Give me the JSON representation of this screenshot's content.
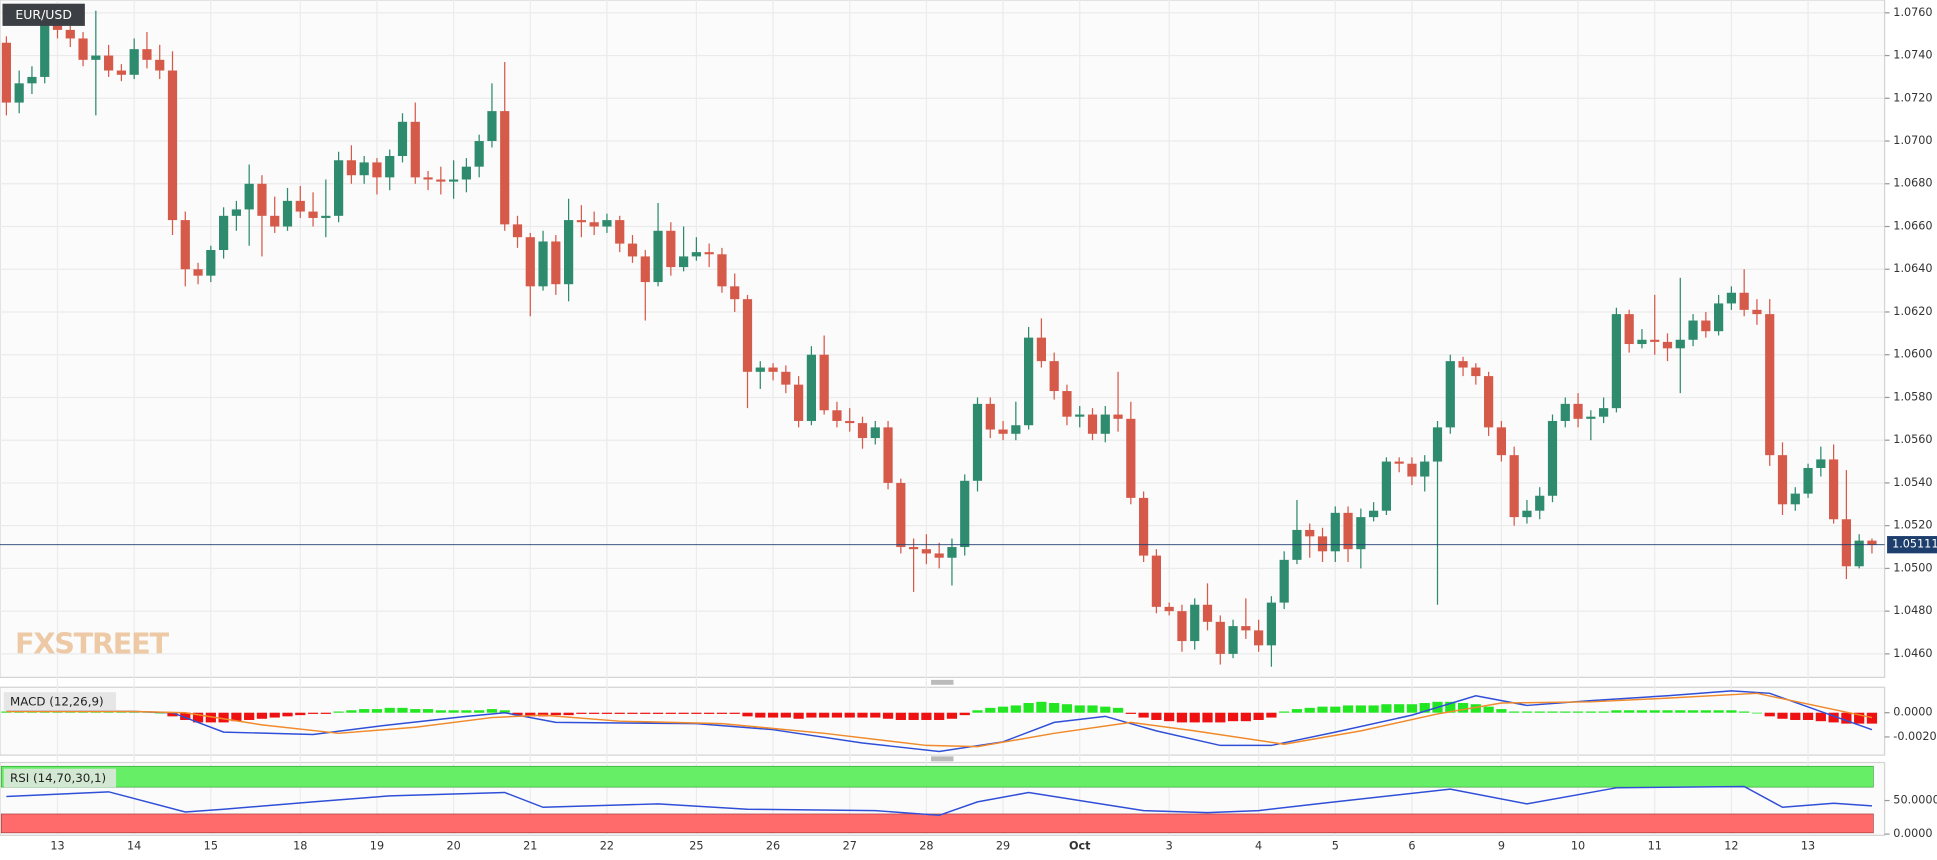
{
  "chart_data": [
    {
      "type": "candlestick",
      "title": "EUR/USD",
      "watermark": "FXSTREET",
      "categories": [
        null,
        null,
        null,
        null,
        "13",
        null,
        null,
        null,
        null,
        null,
        "14",
        null,
        null,
        null,
        null,
        null,
        "15",
        null,
        null,
        null,
        null,
        null,
        null,
        "18",
        null,
        null,
        null,
        null,
        null,
        "19",
        null,
        null,
        null,
        null,
        null,
        "20",
        null,
        null,
        null,
        null,
        null,
        "21",
        null,
        null,
        null,
        null,
        null,
        "22",
        null,
        null,
        null,
        null,
        null,
        null,
        "25",
        null,
        null,
        null,
        null,
        null,
        "26",
        null,
        null,
        null,
        null,
        null,
        "27",
        null,
        null,
        null,
        null,
        null,
        "28",
        null,
        null,
        null,
        null,
        null,
        "29",
        null,
        null,
        null,
        null,
        null,
        "Oct",
        null,
        null,
        null,
        null,
        null,
        null,
        "3",
        null,
        null,
        null,
        null,
        null,
        null,
        "4",
        null,
        null,
        null,
        null,
        null,
        "5",
        null,
        null,
        null,
        null,
        null,
        "6",
        null,
        null,
        null,
        null,
        null,
        null,
        "9",
        null,
        null,
        null,
        null,
        null,
        "10",
        null,
        null,
        null,
        null,
        null,
        "11",
        null,
        null,
        null,
        null,
        null,
        "12",
        null,
        null,
        null,
        null,
        null,
        "13",
        null,
        null,
        null,
        null,
        null
      ],
      "open": [
        1.0746,
        1.0718,
        1.0727,
        1.073,
        1.0758,
        1.0752,
        1.0748,
        1.0738,
        1.074,
        1.0733,
        1.0731,
        1.0743,
        1.0738,
        1.0733,
        1.0663,
        1.064,
        1.0637,
        1.0649,
        1.0665,
        1.0668,
        1.068,
        1.0665,
        1.066,
        1.0672,
        1.0667,
        1.0664,
        1.0665,
        1.0691,
        1.0684,
        1.069,
        1.0683,
        1.0693,
        1.0709,
        1.0683,
        1.0682,
        1.0681,
        1.0682,
        1.0688,
        1.07,
        1.0714,
        1.0661,
        1.0655,
        1.0632,
        1.0653,
        1.0633,
        1.0663,
        1.0662,
        1.066,
        1.0663,
        1.0652,
        1.0646,
        1.0634,
        1.0658,
        1.0641,
        1.0646,
        1.0648,
        1.0647,
        1.0632,
        1.0626,
        1.0592,
        1.0594,
        1.0592,
        1.0586,
        1.0569,
        1.06,
        1.0574,
        1.0569,
        1.0568,
        1.0561,
        1.0566,
        1.054,
        1.051,
        1.0509,
        1.0507,
        1.0505,
        1.051,
        1.0541,
        1.0577,
        1.0565,
        1.0563,
        1.0567,
        1.0608,
        1.0597,
        1.0583,
        1.0571,
        1.0572,
        1.0563,
        1.0572,
        1.057,
        1.0533,
        1.0506,
        1.0482,
        1.048,
        1.0466,
        1.0483,
        1.0475,
        1.046,
        1.0473,
        1.0471,
        1.0464,
        1.0484,
        1.0504,
        1.0518,
        1.0515,
        1.0508,
        1.0526,
        1.0509,
        1.0524,
        1.0527,
        1.055,
        1.0549,
        1.0543,
        1.055,
        1.0566,
        1.0597,
        1.0594,
        1.059,
        1.0566,
        1.0553,
        1.0524,
        1.0527,
        1.0534,
        1.0569,
        1.0577,
        1.057,
        1.0571,
        1.0575,
        1.0619,
        1.0605,
        1.0607,
        1.0606,
        1.0603,
        1.0607,
        1.0616,
        1.0611,
        1.0624,
        1.0629,
        1.0621,
        1.0619,
        1.0553,
        1.053,
        1.0535,
        1.0547,
        1.0551,
        1.0523,
        1.0501,
        1.0513
      ],
      "high": [
        1.0749,
        1.0733,
        1.0735,
        1.0761,
        1.0762,
        1.0757,
        1.0751,
        1.0761,
        1.0745,
        1.0736,
        1.0748,
        1.0751,
        1.0745,
        1.0742,
        1.0667,
        1.0643,
        1.0651,
        1.0669,
        1.0672,
        1.0689,
        1.0684,
        1.0674,
        1.0678,
        1.0679,
        1.0676,
        1.0682,
        1.0695,
        1.0698,
        1.0693,
        1.0692,
        1.0696,
        1.0713,
        1.0718,
        1.0686,
        1.0688,
        1.0691,
        1.0692,
        1.0703,
        1.0727,
        1.0737,
        1.0665,
        1.0657,
        1.0658,
        1.0656,
        1.0673,
        1.067,
        1.0667,
        1.0666,
        1.0665,
        1.0656,
        1.0649,
        1.0671,
        1.0662,
        1.066,
        1.0655,
        1.0652,
        1.065,
        1.0638,
        1.0628,
        1.0597,
        1.0596,
        1.0595,
        1.059,
        1.0604,
        1.0609,
        1.0578,
        1.0575,
        1.0571,
        1.0569,
        1.0569,
        1.0542,
        1.0514,
        1.0516,
        1.0512,
        1.0514,
        1.0544,
        1.058,
        1.058,
        1.0569,
        1.0578,
        1.0613,
        1.0617,
        1.0601,
        1.0586,
        1.0576,
        1.0575,
        1.0576,
        1.0592,
        1.0578,
        1.0536,
        1.0509,
        1.0484,
        1.0483,
        1.0486,
        1.0493,
        1.0478,
        1.0476,
        1.0486,
        1.0476,
        1.0487,
        1.0508,
        1.0532,
        1.0521,
        1.0519,
        1.0529,
        1.0529,
        1.0528,
        1.0531,
        1.0552,
        1.0552,
        1.0552,
        1.0553,
        1.0569,
        1.06,
        1.0599,
        1.0596,
        1.0592,
        1.0569,
        1.0557,
        1.0532,
        1.0538,
        1.0572,
        1.058,
        1.0582,
        1.0574,
        1.058,
        1.0622,
        1.0621,
        1.0612,
        1.0628,
        1.061,
        1.0636,
        1.0619,
        1.062,
        1.0628,
        1.0632,
        1.064,
        1.0626,
        1.0626,
        1.0559,
        1.0538,
        1.0549,
        1.0557,
        1.0558,
        1.0546,
        1.0516,
        1.0514
      ],
      "low": [
        1.0712,
        1.0713,
        1.0722,
        1.0727,
        1.0748,
        1.0744,
        1.0735,
        1.0712,
        1.073,
        1.0728,
        1.0729,
        1.0734,
        1.0729,
        1.0656,
        1.0632,
        1.0633,
        1.0634,
        1.0645,
        1.0658,
        1.0651,
        1.0646,
        1.0657,
        1.0658,
        1.0664,
        1.066,
        1.0655,
        1.0662,
        1.068,
        1.068,
        1.0675,
        1.0677,
        1.069,
        1.068,
        1.0677,
        1.0675,
        1.0673,
        1.0676,
        1.0683,
        1.0697,
        1.0658,
        1.065,
        1.0618,
        1.063,
        1.0628,
        1.0625,
        1.0655,
        1.0656,
        1.0657,
        1.0648,
        1.0643,
        1.0616,
        1.0632,
        1.0637,
        1.0639,
        1.0644,
        1.0641,
        1.0629,
        1.062,
        1.0575,
        1.0584,
        1.0588,
        1.0582,
        1.0566,
        1.0567,
        1.0572,
        1.0566,
        1.0564,
        1.0556,
        1.0558,
        1.0537,
        1.0507,
        1.0489,
        1.0502,
        1.05,
        1.0492,
        1.0506,
        1.0536,
        1.0561,
        1.056,
        1.056,
        1.0565,
        1.0594,
        1.0579,
        1.0567,
        1.0566,
        1.056,
        1.0559,
        1.0564,
        1.053,
        1.0503,
        1.0479,
        1.0478,
        1.0461,
        1.0462,
        1.0471,
        1.0455,
        1.0458,
        1.0467,
        1.0461,
        1.0454,
        1.0481,
        1.0502,
        1.0505,
        1.0503,
        1.0503,
        1.0503,
        1.05,
        1.0522,
        1.0525,
        1.0545,
        1.0539,
        1.0536,
        1.0483,
        1.0563,
        1.059,
        1.0586,
        1.0562,
        1.055,
        1.052,
        1.0521,
        1.0523,
        1.0531,
        1.0566,
        1.0566,
        1.056,
        1.0568,
        1.0573,
        1.0601,
        1.0603,
        1.06,
        1.0597,
        1.0582,
        1.0604,
        1.0608,
        1.0609,
        1.0621,
        1.0618,
        1.0614,
        1.0548,
        1.0525,
        1.0527,
        1.0533,
        1.0543,
        1.0521,
        1.0495,
        1.05,
        1.0507
      ],
      "close": [
        1.0718,
        1.0727,
        1.073,
        1.0758,
        1.0752,
        1.0748,
        1.0738,
        1.074,
        1.0733,
        1.0731,
        1.0743,
        1.0738,
        1.0733,
        1.0663,
        1.064,
        1.0637,
        1.0649,
        1.0665,
        1.0668,
        1.068,
        1.0665,
        1.066,
        1.0672,
        1.0667,
        1.0664,
        1.0665,
        1.0691,
        1.0684,
        1.069,
        1.0683,
        1.0693,
        1.0709,
        1.0683,
        1.0682,
        1.0681,
        1.0682,
        1.0688,
        1.07,
        1.0714,
        1.0661,
        1.0655,
        1.0632,
        1.0653,
        1.0633,
        1.0663,
        1.0662,
        1.066,
        1.0663,
        1.0652,
        1.0646,
        1.0634,
        1.0658,
        1.0641,
        1.0646,
        1.0648,
        1.0647,
        1.0632,
        1.0626,
        1.0592,
        1.0594,
        1.0592,
        1.0586,
        1.0569,
        1.06,
        1.0574,
        1.0569,
        1.0568,
        1.0561,
        1.0566,
        1.054,
        1.051,
        1.0509,
        1.0507,
        1.0505,
        1.051,
        1.0541,
        1.0577,
        1.0565,
        1.0563,
        1.0567,
        1.0608,
        1.0597,
        1.0583,
        1.0571,
        1.0572,
        1.0563,
        1.0572,
        1.057,
        1.0533,
        1.0506,
        1.0482,
        1.048,
        1.0466,
        1.0483,
        1.0475,
        1.046,
        1.0473,
        1.0471,
        1.0464,
        1.0484,
        1.0504,
        1.0518,
        1.0515,
        1.0508,
        1.0526,
        1.0509,
        1.0524,
        1.0527,
        1.055,
        1.0549,
        1.0543,
        1.055,
        1.0566,
        1.0597,
        1.0594,
        1.059,
        1.0566,
        1.0553,
        1.0524,
        1.0527,
        1.0534,
        1.0569,
        1.0577,
        1.057,
        1.0571,
        1.0575,
        1.0619,
        1.0605,
        1.0607,
        1.0606,
        1.0603,
        1.0607,
        1.0616,
        1.0611,
        1.0624,
        1.0629,
        1.0621,
        1.0619,
        1.0553,
        1.053,
        1.0535,
        1.0547,
        1.0551,
        1.0523,
        1.0501,
        1.0513,
        1.0511
      ],
      "up_color": "#2e8b6e",
      "down_color": "#d65a4a",
      "last_price": 1.05111,
      "last_price_color": "#1e3f6e",
      "ylim": [
        1.0449,
        1.0766
      ],
      "yticks": [
        {
          "value": 1.046,
          "label": "1.0460"
        },
        {
          "value": 1.048,
          "label": "1.0480"
        },
        {
          "value": 1.05,
          "label": "1.0500"
        },
        {
          "value": 1.052,
          "label": "1.0520"
        },
        {
          "value": 1.054,
          "label": "1.0540"
        },
        {
          "value": 1.056,
          "label": "1.0560"
        },
        {
          "value": 1.058,
          "label": "1.0580"
        },
        {
          "value": 1.06,
          "label": "1.0600"
        },
        {
          "value": 1.062,
          "label": "1.0620"
        },
        {
          "value": 1.064,
          "label": "1.0640"
        },
        {
          "value": 1.066,
          "label": "1.0660"
        },
        {
          "value": 1.068,
          "label": "1.0680"
        },
        {
          "value": 1.07,
          "label": "1.0700"
        },
        {
          "value": 1.072,
          "label": "1.0720"
        },
        {
          "value": 1.074,
          "label": "1.0740"
        },
        {
          "value": 1.076,
          "label": "1.0760"
        }
      ],
      "grid": true
    },
    {
      "type": "macd",
      "title": "MACD (12,26,9)",
      "histogram": {
        "up_color": "#22e622",
        "down_color": "#ee1111",
        "values": [
          0.0001,
          0.0001,
          0.0001,
          0.0002,
          0.0002,
          0.0002,
          0.0001,
          0.0001,
          0.0001,
          0.0001,
          0.0001,
          0.0001,
          0.0,
          -0.0003,
          -0.0006,
          -0.0008,
          -0.0008,
          -0.0008,
          -0.0007,
          -0.0006,
          -0.0005,
          -0.0004,
          -0.0003,
          -0.0002,
          -0.0001,
          -0.0001,
          0.0001,
          0.0002,
          0.0003,
          0.0003,
          0.0004,
          0.0004,
          0.0003,
          0.0003,
          0.0002,
          0.0002,
          0.0002,
          0.0002,
          0.0003,
          0.0002,
          -0.0002,
          -0.0003,
          -0.0003,
          -0.0002,
          -0.0002,
          -0.0001,
          -0.0001,
          -0.0001,
          -0.0001,
          -0.0001,
          -0.0001,
          -0.0001,
          -0.0001,
          -0.0001,
          -0.0001,
          -0.0001,
          -0.0001,
          -0.0001,
          -0.0003,
          -0.0004,
          -0.0004,
          -0.0004,
          -0.0005,
          -0.0004,
          -0.0004,
          -0.0004,
          -0.0004,
          -0.0004,
          -0.0004,
          -0.0005,
          -0.0006,
          -0.0006,
          -0.0006,
          -0.0006,
          -0.0005,
          -0.0002,
          0.0002,
          0.0004,
          0.0005,
          0.0006,
          0.0008,
          0.0009,
          0.0008,
          0.0007,
          0.0006,
          0.0006,
          0.0005,
          0.0004,
          -0.0001,
          -0.0004,
          -0.0006,
          -0.0007,
          -0.0008,
          -0.0008,
          -0.0008,
          -0.0008,
          -0.0007,
          -0.0007,
          -0.0006,
          -0.0004,
          0.0001,
          0.0003,
          0.0004,
          0.0005,
          0.0005,
          0.0006,
          0.0006,
          0.0006,
          0.0007,
          0.0007,
          0.0007,
          0.0008,
          0.0009,
          0.0009,
          0.0008,
          0.0007,
          0.0005,
          0.0003,
          0.0001,
          0.0001,
          0.0001,
          0.0001,
          0.0001,
          0.0001,
          0.0001,
          0.0001,
          0.0002,
          0.0002,
          0.0002,
          0.0002,
          0.0002,
          0.0002,
          0.0002,
          0.0002,
          0.0002,
          0.0002,
          0.0001,
          0.0,
          -0.0003,
          -0.0005,
          -0.0006,
          -0.0006,
          -0.0007,
          -0.0008,
          -0.0009,
          -0.0009,
          -0.0009
        ]
      },
      "series": [
        {
          "color": "#2f4fd8",
          "x": [
            0,
            10,
            13,
            17,
            24,
            30,
            36,
            39,
            43,
            54,
            60,
            67,
            73,
            78,
            82,
            86,
            90,
            95,
            99,
            104,
            110,
            115,
            119,
            124,
            130,
            135,
            138,
            146
          ],
          "values": [
            0.0002,
            0.0001,
            0.0,
            -0.0016,
            -0.0018,
            -0.001,
            -0.0003,
            0.0,
            -0.0008,
            -0.0009,
            -0.0014,
            -0.0025,
            -0.0032,
            -0.0024,
            -0.0008,
            -0.0003,
            -0.0015,
            -0.0027,
            -0.0027,
            -0.0016,
            -0.0002,
            0.0014,
            0.0006,
            0.001,
            0.0014,
            0.0018,
            0.0016,
            -0.0014
          ]
        },
        {
          "color": "#f08a2a",
          "x": [
            0,
            10,
            14,
            20,
            26,
            32,
            38,
            42,
            48,
            56,
            64,
            72,
            76,
            82,
            88,
            93,
            100,
            106,
            112,
            117,
            124,
            130,
            137,
            146
          ],
          "values": [
            0.0001,
            0.0001,
            0.0,
            -0.001,
            -0.0017,
            -0.0012,
            -0.0004,
            -0.0002,
            -0.0007,
            -0.0009,
            -0.0017,
            -0.0027,
            -0.0028,
            -0.0017,
            -0.0008,
            -0.0015,
            -0.0026,
            -0.0015,
            -0.0001,
            0.0008,
            0.0009,
            0.0012,
            0.0016,
            -0.0004
          ]
        }
      ],
      "ylim": [
        -0.0035,
        0.0021
      ],
      "yticks": [
        {
          "value": 0,
          "label": "0.0000"
        },
        {
          "value": -0.002,
          "label": "-0.0020"
        }
      ]
    },
    {
      "type": "rsi",
      "title": "RSI (14,70,30,1)",
      "series": [
        {
          "color": "#2f4fd8",
          "x": [
            0,
            8,
            14,
            17,
            24,
            30,
            39,
            42,
            51,
            58,
            68,
            73,
            76,
            80,
            89,
            94,
            98,
            103,
            113,
            119,
            126,
            136,
            139,
            143,
            146
          ],
          "values": [
            56,
            63,
            33,
            37,
            48,
            57,
            62,
            40,
            45,
            37,
            35,
            28,
            48,
            62,
            35,
            32,
            35,
            46,
            67,
            45,
            69,
            71,
            40,
            46,
            42
          ]
        }
      ],
      "overbought": 70,
      "oversold": 30,
      "overbought_color": "#66ee66",
      "oversold_color": "#ff6b6b",
      "ylim": [
        0,
        103
      ],
      "yticks": [
        {
          "value": 50,
          "label": "50.0000"
        },
        {
          "value": 0,
          "label": "0.0000"
        }
      ]
    }
  ]
}
